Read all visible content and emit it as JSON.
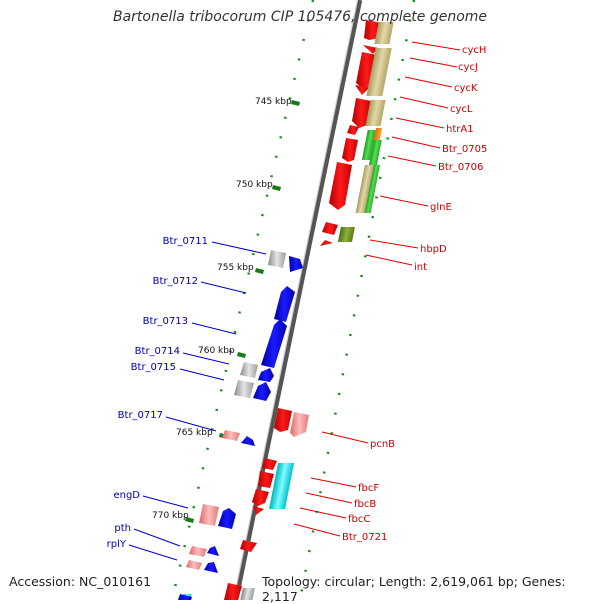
{
  "header": {
    "title": "Bartonella tribocorum CIP 105476, complete genome"
  },
  "footer": {
    "accession": "Accession: NC_010161",
    "topology": "Topology: circular; Length: 2,619,061 bp; Genes: 2,117"
  },
  "ticks": [
    "745 kbp",
    "750 kbp",
    "755 kbp",
    "760 kbp",
    "765 kbp",
    "770 kbp"
  ],
  "right_genes": [
    "cycH",
    "cycJ",
    "cycK",
    "cycL",
    "htrA1",
    "Btr_0705",
    "Btr_0706",
    "glnE",
    "hbpD",
    "int",
    "pcnB",
    "fbcF",
    "fbcB",
    "fbcC",
    "Btr_0721"
  ],
  "left_genes": [
    "Btr_0711",
    "Btr_0712",
    "Btr_0713",
    "Btr_0714",
    "Btr_0715",
    "Btr_0717",
    "engD",
    "pth",
    "rplY"
  ],
  "colors": {
    "strand_forward_cds": "#ff0000",
    "strand_reverse_cds": "#0000ff",
    "right_label": "#cc0000",
    "left_label": "#0000aa",
    "tick_mark": "#1a7a1a",
    "tan_track": "#c8bb85",
    "green_track": "#33cc33",
    "cyan_track": "#00e5ee",
    "olive_track": "#6b8e23"
  }
}
